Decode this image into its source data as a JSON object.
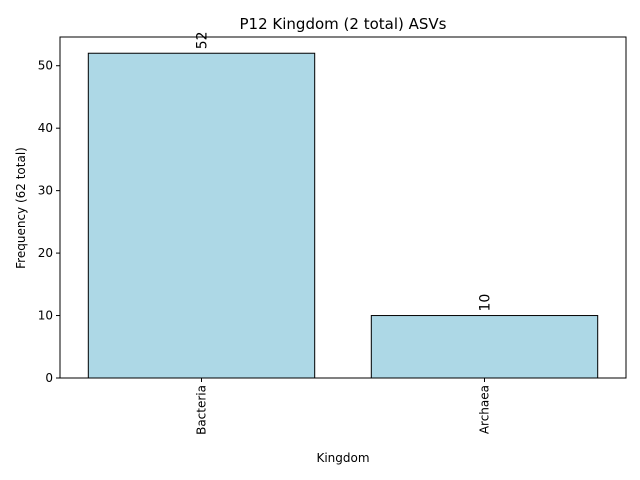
{
  "chart_data": {
    "type": "bar",
    "title": "P12 Kingdom (2 total) ASVs",
    "xlabel": "Kingdom",
    "ylabel": "Frequency (62 total)",
    "categories": [
      "Bacteria",
      "Archaea"
    ],
    "values": [
      52,
      10
    ],
    "data_labels": [
      "52",
      "10"
    ],
    "ylim": [
      0,
      54.6
    ],
    "yticks": [
      0,
      10,
      20,
      30,
      40,
      50
    ],
    "ytick_labels": [
      "0",
      "10",
      "20",
      "30",
      "40",
      "50"
    ],
    "grid": false,
    "bar_color": "#add8e6",
    "bar_edge_color": "#000000"
  }
}
